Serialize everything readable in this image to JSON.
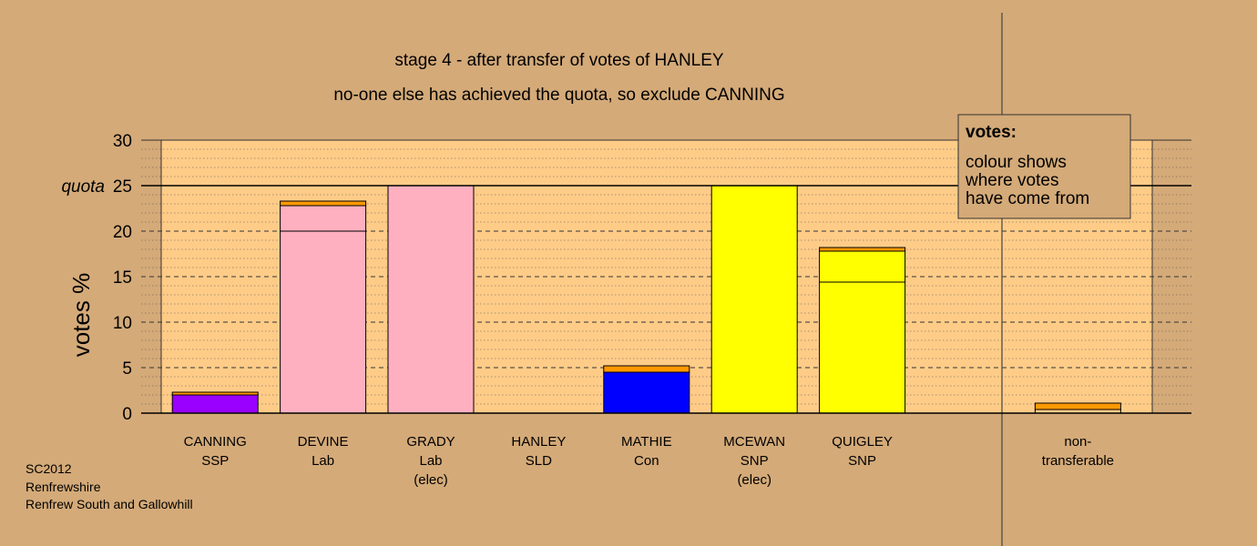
{
  "chart_data": {
    "type": "bar",
    "title": "stage 4 - after transfer of votes of HANLEY",
    "subtitle": "no-one else has achieved the quota, so exclude CANNING",
    "ylabel": "votes %",
    "ylim": [
      0,
      30
    ],
    "yticks": [
      {
        "value": 0,
        "label": "0"
      },
      {
        "value": 5,
        "label": "5"
      },
      {
        "value": 10,
        "label": "10"
      },
      {
        "value": 15,
        "label": "15"
      },
      {
        "value": 20,
        "label": "20"
      },
      {
        "value": 25,
        "label": "25"
      },
      {
        "value": 30,
        "label": "30"
      }
    ],
    "quota": {
      "value": 25,
      "label": "quota"
    },
    "grid": "dashed major every 5, dotted minor every 1",
    "legend": {
      "position": "top-right",
      "title": "votes:",
      "lines": [
        "colour shows",
        "where votes",
        "have come from"
      ]
    },
    "colors": {
      "background": "#D4AA78",
      "plot_area": "#FFCC88",
      "SSP": "#9900FF",
      "Lab": "#FFB0C0",
      "SLD": "#FF9900",
      "Con": "#0000FF",
      "SNP": "#FFFF00",
      "NT": "#FFCC88"
    },
    "categories": [
      {
        "lines": [
          "CANNING",
          "SSP"
        ],
        "segments": [
          {
            "from": "SSP",
            "value": 2.0
          },
          {
            "from": "SLD",
            "value": 0.3
          }
        ]
      },
      {
        "lines": [
          "DEVINE",
          "Lab"
        ],
        "segments": [
          {
            "from": "Lab",
            "value": 20.0
          },
          {
            "from": "Lab",
            "value": 2.8
          },
          {
            "from": "SLD",
            "value": 0.5
          }
        ]
      },
      {
        "lines": [
          "GRADY",
          "Lab",
          "(elec)"
        ],
        "segments": [
          {
            "from": "Lab",
            "value": 25.0
          }
        ]
      },
      {
        "lines": [
          "HANLEY",
          "SLD"
        ],
        "segments": []
      },
      {
        "lines": [
          "MATHIE",
          "Con"
        ],
        "segments": [
          {
            "from": "Con",
            "value": 4.5
          },
          {
            "from": "SLD",
            "value": 0.7
          }
        ]
      },
      {
        "lines": [
          "MCEWAN",
          "SNP",
          "(elec)"
        ],
        "segments": [
          {
            "from": "SNP",
            "value": 25.0
          }
        ]
      },
      {
        "lines": [
          "QUIGLEY",
          "SNP"
        ],
        "segments": [
          {
            "from": "SNP",
            "value": 14.4
          },
          {
            "from": "SNP",
            "value": 3.4
          },
          {
            "from": "SLD",
            "value": 0.4
          }
        ]
      },
      {
        "lines": [],
        "segments": []
      },
      {
        "lines": [
          "non-",
          "transferable"
        ],
        "segments": [
          {
            "from": "NT",
            "value": 0.4
          },
          {
            "from": "SLD",
            "value": 0.7
          }
        ]
      }
    ]
  },
  "footer": {
    "lines": [
      "SC2012",
      "Renfrewshire",
      "Renfrew South and Gallowhill"
    ]
  }
}
